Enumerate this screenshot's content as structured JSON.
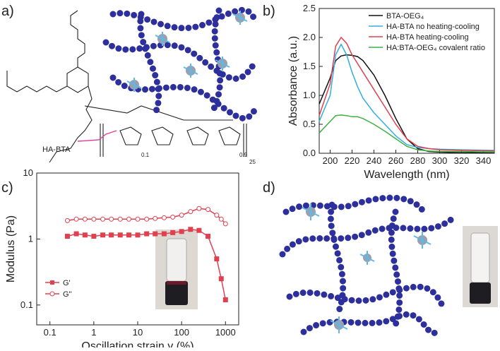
{
  "panels": {
    "labels": [
      "a)",
      "b)",
      "c)",
      "d)"
    ],
    "structure": {
      "name": "HA-BTA",
      "subscripts": [
        "0.1",
        "0.9",
        "25"
      ]
    }
  },
  "chart_data": [
    {
      "type": "line",
      "xlabel": "Wavelength (nm)",
      "ylabel": "Absorbance (a.u.)",
      "x": [
        190,
        200,
        205,
        210,
        215,
        220,
        225,
        230,
        240,
        250,
        260,
        270,
        280,
        290,
        300,
        320,
        350
      ],
      "series": [
        {
          "name": "BTA-OEG₄",
          "color": "#111111",
          "values": [
            0.85,
            1.3,
            1.6,
            1.68,
            1.7,
            1.69,
            1.67,
            1.6,
            1.35,
            1.0,
            0.6,
            0.25,
            0.08,
            0.03,
            0.02,
            0.01,
            0.01
          ]
        },
        {
          "name": "HA-BTA no heating-cooling",
          "color": "#35aee0",
          "values": [
            0.55,
            1.0,
            1.7,
            1.88,
            1.7,
            1.4,
            1.15,
            0.95,
            0.7,
            0.5,
            0.3,
            0.15,
            0.1,
            0.08,
            0.07,
            0.06,
            0.05
          ]
        },
        {
          "name": "HA-BTA heating-cooling",
          "color": "#e0404f",
          "values": [
            0.65,
            1.2,
            1.85,
            2.0,
            1.9,
            1.7,
            1.55,
            1.4,
            1.1,
            0.8,
            0.5,
            0.25,
            0.12,
            0.08,
            0.06,
            0.05,
            0.04
          ]
        },
        {
          "name": "HA:BTA-OEG₄ covalent ratio",
          "color": "#3db044",
          "values": [
            0.35,
            0.55,
            0.65,
            0.66,
            0.65,
            0.63,
            0.63,
            0.6,
            0.5,
            0.38,
            0.25,
            0.12,
            0.06,
            0.04,
            0.03,
            0.03,
            0.02
          ]
        }
      ],
      "xlim": [
        190,
        350
      ],
      "xticks": [
        200,
        220,
        240,
        260,
        280,
        300,
        320,
        340
      ],
      "ylim": [
        0,
        2.5
      ],
      "yticks": [
        {
          "value": 0,
          "label": "0.0"
        },
        0.5,
        {
          "value": 1,
          "label": "1.0"
        },
        1.5,
        {
          "value": 2,
          "label": "2.0"
        },
        2.5
      ],
      "legend": "upper right",
      "log": false
    },
    {
      "type": "line",
      "xlabel": "Oscillation strain γ (%)",
      "ylabel": "Modulus (Pa)",
      "x": [
        0.25,
        0.4,
        0.63,
        1,
        1.6,
        2.5,
        4,
        6.3,
        10,
        16,
        25,
        40,
        63,
        100,
        160,
        250,
        400,
        630,
        800,
        1000
      ],
      "series": [
        {
          "name": "G'",
          "color": "#e0404f",
          "marker": "square",
          "filled": true,
          "values": [
            1.1,
            1.2,
            1.15,
            1.1,
            1.15,
            1.15,
            1.15,
            1.15,
            1.15,
            1.2,
            1.2,
            1.2,
            1.25,
            1.3,
            1.4,
            1.35,
            1.1,
            0.5,
            0.25,
            0.12
          ]
        },
        {
          "name": "G''",
          "color": "#e0404f",
          "marker": "circle",
          "filled": false,
          "values": [
            1.9,
            2.0,
            2.0,
            2.0,
            2.0,
            2.0,
            2.0,
            2.0,
            2.0,
            2.0,
            2.05,
            2.1,
            2.15,
            2.3,
            2.6,
            2.9,
            2.8,
            2.3,
            2.0,
            1.7
          ]
        }
      ],
      "xlim": [
        0.05,
        2000
      ],
      "xticks": [
        0.1,
        1,
        10,
        100,
        1000
      ],
      "ylim": [
        0.05,
        10
      ],
      "yticks": [
        0.1,
        1,
        10
      ],
      "legend": "lower left",
      "log": true
    }
  ]
}
